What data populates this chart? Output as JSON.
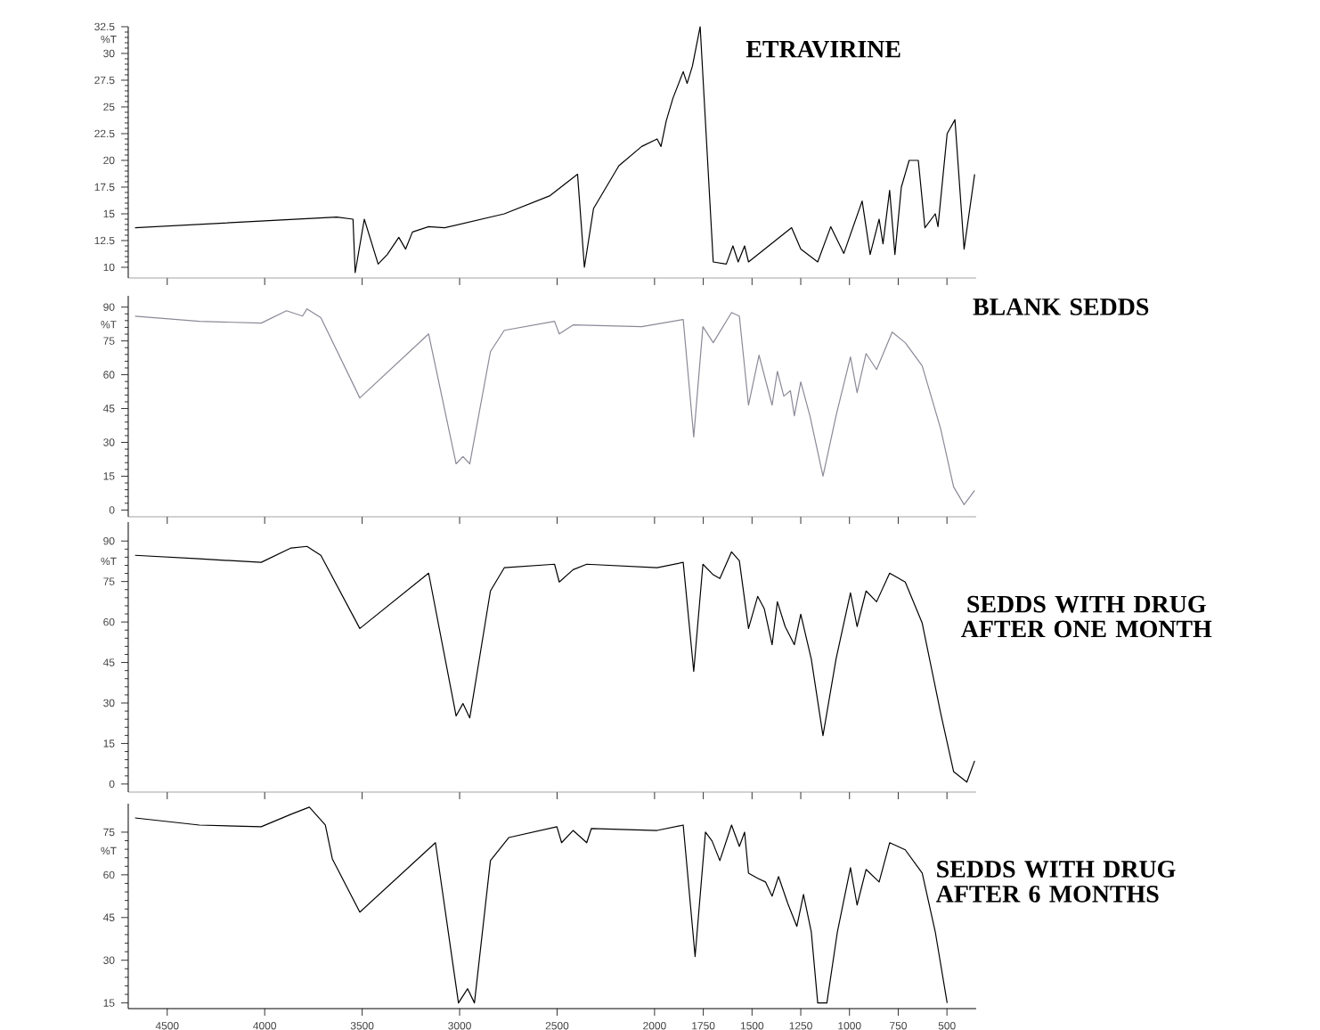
{
  "chart_data": [
    {
      "type": "line",
      "title": "ETRAVIRINE",
      "ylabel": "%T",
      "color": "#000000",
      "xlim": [
        4700,
        350
      ],
      "xticks": [
        4500,
        4000,
        3500,
        3000,
        2500,
        2000,
        1750,
        1500,
        1250,
        1000,
        750,
        500
      ],
      "ylim": [
        9,
        32.5
      ],
      "yticks": [
        10,
        12.5,
        15,
        17.5,
        20,
        22.5,
        25,
        27.5,
        30,
        32.5
      ],
      "tick_labels": "y",
      "x": [
        4665,
        3630,
        3547,
        3536,
        3489,
        3418,
        3371,
        3312,
        3277,
        3242,
        3159,
        3077,
        2771,
        2536,
        2395,
        2360,
        2313,
        2183,
        2066,
        1987,
        1967,
        1940,
        1906,
        1853,
        1833,
        1806,
        1766,
        1699,
        1632,
        1598,
        1571,
        1538,
        1518,
        1297,
        1250,
        1163,
        1096,
        1029,
        935,
        894,
        848,
        828,
        794,
        767,
        734,
        694,
        647,
        613,
        560,
        546,
        499,
        459,
        412,
        358
      ],
      "values": [
        13.7,
        14.7,
        14.5,
        9.5,
        14.5,
        10.3,
        11.2,
        12.8,
        11.7,
        13.3,
        13.8,
        13.7,
        15.0,
        16.7,
        18.7,
        10.0,
        15.5,
        19.5,
        21.3,
        22.0,
        21.3,
        23.7,
        25.8,
        28.3,
        27.2,
        28.8,
        32.5,
        10.5,
        10.3,
        12.0,
        10.5,
        12.0,
        10.5,
        13.7,
        11.7,
        10.5,
        13.8,
        11.3,
        16.2,
        11.2,
        14.5,
        12.2,
        17.2,
        11.2,
        17.5,
        20.0,
        20.0,
        13.7,
        15.0,
        13.8,
        22.5,
        23.8,
        11.7,
        18.7
      ]
    },
    {
      "type": "line",
      "title": "BLANK SEDDS",
      "ylabel": "%T",
      "color": "#8a8a98",
      "xlim": [
        4700,
        350
      ],
      "xticks": [
        4500,
        4000,
        3500,
        3000,
        2500,
        2000,
        1750,
        1500,
        1250,
        1000,
        750,
        500
      ],
      "ylim": [
        -3,
        95
      ],
      "yticks": [
        0,
        15,
        30,
        45,
        60,
        75,
        90
      ],
      "tick_labels": "y",
      "x": [
        4665,
        4335,
        4018,
        3888,
        3806,
        3783,
        3712,
        3512,
        3159,
        3018,
        2983,
        2948,
        2842,
        2771,
        2513,
        2489,
        2418,
        2066,
        1853,
        1799,
        1752,
        1699,
        1605,
        1565,
        1518,
        1464,
        1397,
        1370,
        1337,
        1303,
        1283,
        1250,
        1203,
        1136,
        1069,
        995,
        961,
        915,
        861,
        781,
        714,
        627,
        533,
        466,
        412,
        358
      ],
      "values": [
        86.0,
        83.7,
        82.9,
        88.4,
        86.0,
        89.2,
        85.3,
        49.7,
        78.1,
        20.5,
        23.7,
        20.5,
        70.2,
        79.7,
        83.7,
        78.1,
        82.1,
        81.3,
        84.5,
        32.4,
        81.3,
        74.2,
        87.6,
        86.0,
        46.5,
        68.7,
        46.5,
        61.5,
        50.5,
        52.9,
        41.8,
        56.8,
        41.8,
        15.0,
        41.8,
        67.9,
        52.1,
        69.4,
        62.3,
        78.9,
        74.2,
        63.9,
        36.3,
        10.3,
        2.4,
        8.7
      ]
    },
    {
      "type": "line",
      "title": "SEDDS WITH DRUG AFTER ONE MONTH",
      "ylabel": "%T",
      "color": "#000000",
      "xlim": [
        4700,
        350
      ],
      "xticks": [
        4500,
        4000,
        3500,
        3000,
        2500,
        2000,
        1750,
        1500,
        1250,
        1000,
        750,
        500
      ],
      "ylim": [
        -3,
        97
      ],
      "yticks": [
        0,
        15,
        30,
        45,
        60,
        75,
        90
      ],
      "tick_labels": "y",
      "x": [
        4665,
        4335,
        4018,
        3865,
        3783,
        3712,
        3512,
        3159,
        3018,
        2983,
        2948,
        2842,
        2771,
        2513,
        2489,
        2418,
        2348,
        1987,
        1853,
        1799,
        1752,
        1699,
        1665,
        1605,
        1565,
        1518,
        1471,
        1437,
        1397,
        1370,
        1330,
        1283,
        1250,
        1196,
        1136,
        1069,
        995,
        961,
        915,
        861,
        794,
        714,
        627,
        533,
        466,
        398,
        358
      ],
      "values": [
        84.7,
        83.4,
        82.1,
        87.4,
        88.0,
        84.7,
        57.6,
        78.1,
        25.2,
        29.8,
        24.5,
        71.5,
        80.1,
        81.4,
        74.8,
        79.4,
        81.4,
        80.1,
        82.1,
        41.7,
        81.4,
        77.5,
        76.1,
        86.0,
        82.7,
        57.6,
        69.5,
        64.9,
        51.6,
        67.5,
        58.3,
        51.6,
        62.9,
        46.3,
        17.9,
        46.3,
        70.8,
        58.3,
        71.5,
        67.5,
        78.1,
        74.8,
        59.6,
        26.5,
        4.6,
        0.7,
        8.6
      ]
    },
    {
      "type": "line",
      "title": "SEDDS WITH DRUG AFTER 6 MONTHS",
      "ylabel": "%T",
      "color": "#000000",
      "xlim": [
        4700,
        350
      ],
      "ylim": [
        13,
        85
      ],
      "yticks": [
        15,
        30,
        45,
        60,
        75
      ],
      "xticks": [
        4500,
        4000,
        3500,
        3000,
        2500,
        2000,
        1750,
        1500,
        1250,
        1000,
        750,
        500
      ],
      "x": [
        4665,
        4335,
        4018,
        3865,
        3771,
        3689,
        3653,
        3512,
        3124,
        3006,
        2959,
        2924,
        2842,
        2748,
        2501,
        2477,
        2418,
        2348,
        2324,
        1987,
        1853,
        1792,
        1739,
        1705,
        1665,
        1605,
        1565,
        1538,
        1518,
        1471,
        1431,
        1397,
        1364,
        1317,
        1270,
        1236,
        1196,
        1163,
        1116,
        1062,
        995,
        961,
        915,
        848,
        794,
        714,
        627,
        560,
        499
      ],
      "values": [
        80.0,
        77.5,
        76.9,
        81.3,
        83.8,
        77.5,
        65.6,
        46.9,
        71.3,
        15,
        20,
        15,
        65,
        73.1,
        76.9,
        71.3,
        75.6,
        71.3,
        76.3,
        75.6,
        77.5,
        31.3,
        75,
        71.9,
        65,
        77.5,
        70,
        75,
        60.6,
        58.8,
        57.5,
        52.5,
        59.4,
        50,
        41.9,
        53.1,
        40,
        15,
        15,
        40,
        62.5,
        49.4,
        61.9,
        57.5,
        71.3,
        68.8,
        60.6,
        40,
        15
      ]
    }
  ]
}
